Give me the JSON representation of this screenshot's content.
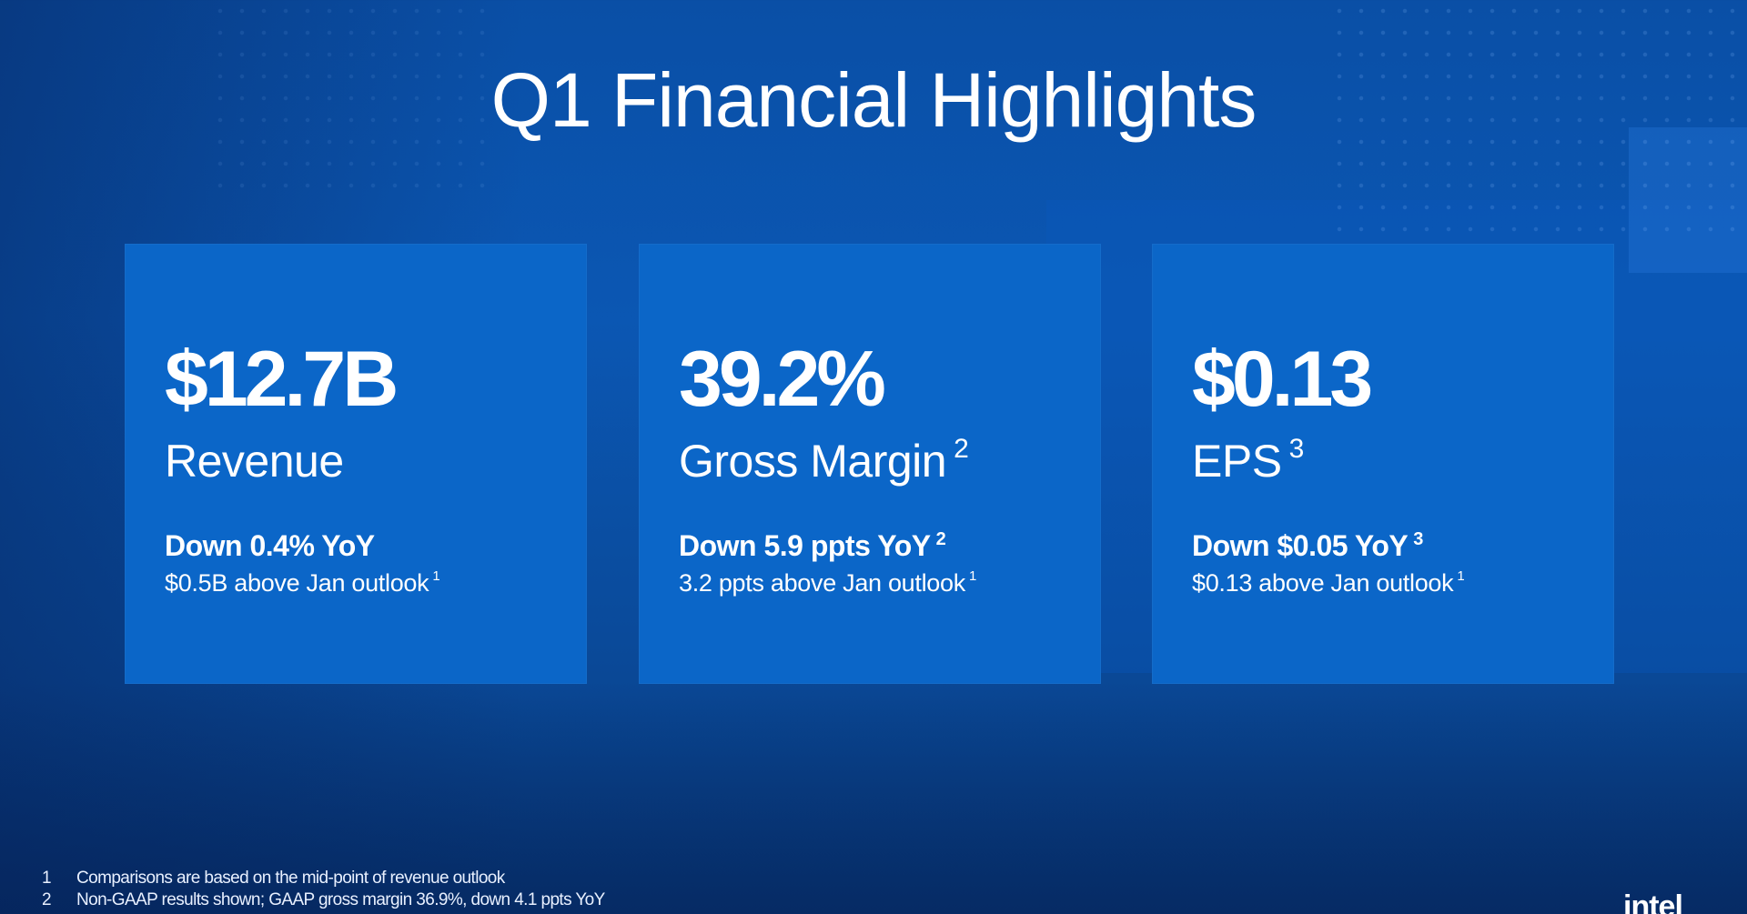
{
  "slide": {
    "title": "Q1 Financial Highlights",
    "logo": "intel"
  },
  "cards": [
    {
      "value": "$12.7B",
      "metric": "Revenue",
      "metric_note": "",
      "change": "Down 0.4% YoY",
      "change_note": "",
      "outlook": "$0.5B above Jan outlook",
      "outlook_note": "1"
    },
    {
      "value": "39.2%",
      "metric": "Gross Margin",
      "metric_note": "2",
      "change": "Down 5.9 ppts YoY",
      "change_note": "2",
      "outlook": "3.2 ppts above Jan outlook",
      "outlook_note": "1"
    },
    {
      "value": "$0.13",
      "metric": "EPS",
      "metric_note": "3",
      "change": "Down $0.05 YoY",
      "change_note": "3",
      "outlook": "$0.13 above Jan outlook",
      "outlook_note": "1"
    }
  ],
  "footnotes": [
    {
      "num": "1",
      "text": "Comparisons are based on the mid-point of revenue outlook"
    },
    {
      "num": "2",
      "text": "Non-GAAP results shown; GAAP gross margin 36.9%, down 4.1 ppts YoY"
    }
  ],
  "colors": {
    "background": "#0b57b3",
    "card": "#0b66c8",
    "text": "#ffffff"
  }
}
